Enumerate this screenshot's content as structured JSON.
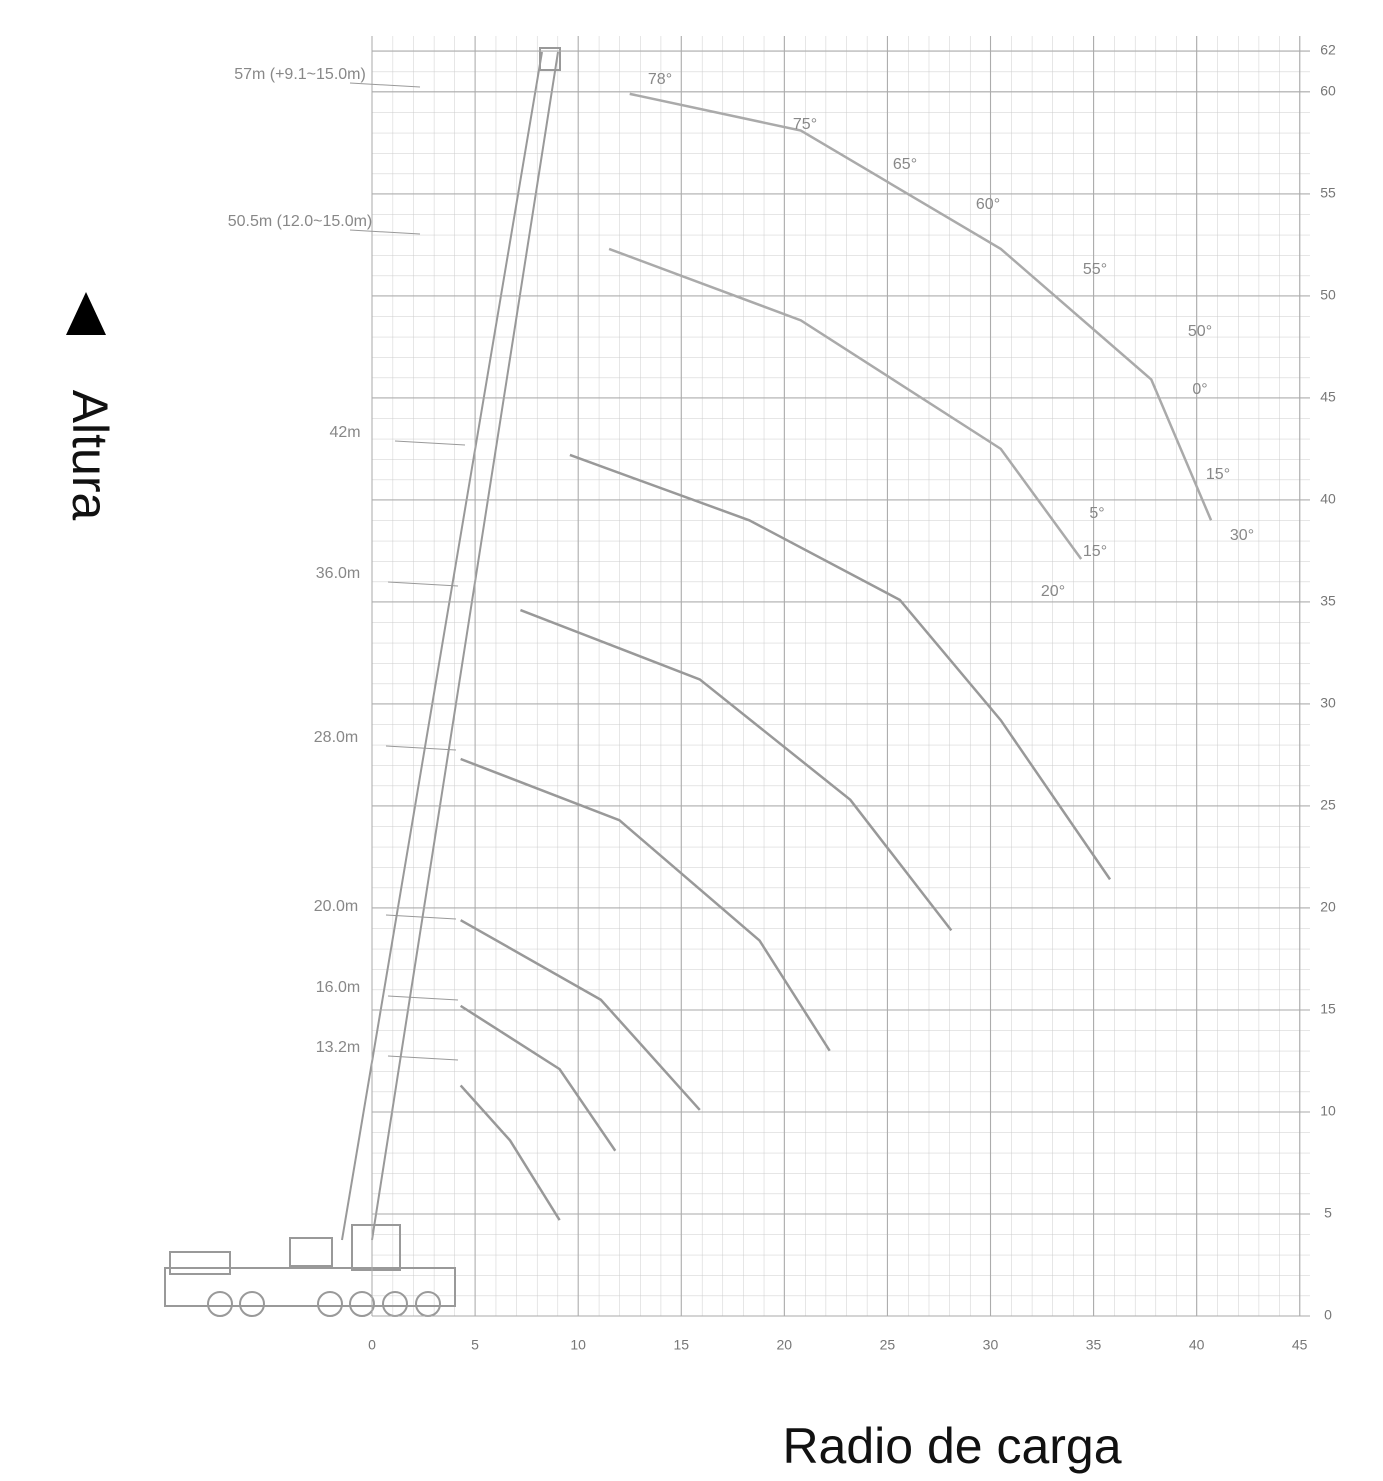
{
  "chart_data": {
    "type": "line",
    "x_label": "Radio de carga",
    "y_label": "Altura",
    "xlim": [
      0,
      45.5
    ],
    "ylim": [
      0,
      62
    ],
    "xticks": [
      0,
      5,
      10,
      15,
      20,
      25,
      30,
      35,
      40,
      45
    ],
    "yticks": [
      0,
      5,
      10,
      15,
      20,
      25,
      30,
      35,
      40,
      45,
      50,
      55,
      60,
      62
    ],
    "grid": true,
    "boom_labels": [
      "57m (+9.1~15.0m)",
      "50.5m (12.0~15.0m)",
      "42m",
      "36.0m",
      "28.0m",
      "20.0m",
      "16.0m",
      "13.2m"
    ],
    "angle_labels": [
      "78°",
      "75°",
      "65°",
      "60°",
      "55°",
      "50°",
      "0°",
      "15°",
      "30°",
      "5°",
      "15°",
      "20°"
    ],
    "series": [
      {
        "color": "#999999",
        "x": [
          4.3,
          6.7,
          9.1
        ],
        "values": [
          11.3,
          8.6,
          4.7
        ]
      },
      {
        "color": "#999999",
        "x": [
          4.3,
          9.1,
          11.8
        ],
        "values": [
          15.2,
          12.1,
          8.1
        ]
      },
      {
        "color": "#999999",
        "x": [
          4.3,
          11.1,
          15.9
        ],
        "values": [
          19.4,
          15.5,
          10.1
        ]
      },
      {
        "color": "#999999",
        "x": [
          4.3,
          12,
          18.8,
          22.2
        ],
        "values": [
          27.3,
          24.3,
          18.4,
          13
        ]
      },
      {
        "color": "#999999",
        "x": [
          7.2,
          15.9,
          23.2,
          28.1
        ],
        "values": [
          34.6,
          31.2,
          25.3,
          18.9
        ]
      },
      {
        "color": "#999999",
        "x": [
          9.6,
          18.3,
          25.6,
          30.5,
          35.8
        ],
        "values": [
          42.2,
          39,
          35.1,
          29.2,
          21.4
        ]
      },
      {
        "color": "#aaaaaa",
        "x": [
          11.5,
          20.8,
          30.5,
          34.4
        ],
        "values": [
          52.3,
          48.8,
          42.5,
          37.1
        ]
      },
      {
        "color": "#aaaaaa",
        "x": [
          12.5,
          20.8,
          30.5,
          37.8,
          40.7
        ],
        "values": [
          59.9,
          58.1,
          52.3,
          45.9,
          39
        ]
      }
    ]
  }
}
